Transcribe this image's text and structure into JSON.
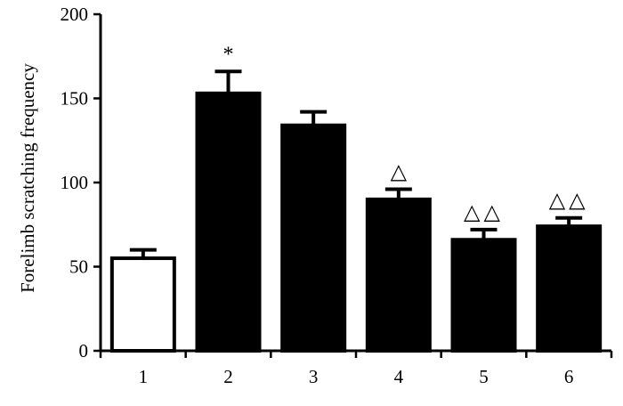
{
  "chart_data": {
    "type": "bar",
    "categories": [
      "1",
      "2",
      "3",
      "4",
      "5",
      "6"
    ],
    "values": [
      55,
      153,
      134,
      90,
      66,
      74
    ],
    "errors": [
      5,
      13,
      8,
      6,
      6,
      5
    ],
    "annotations": [
      "",
      "*",
      "",
      "△",
      "△△",
      "△△"
    ],
    "fills": [
      "#ffffff",
      "#000000",
      "#000000",
      "#000000",
      "#000000",
      "#000000"
    ],
    "ylabel": "Forelimb scratching frequency",
    "xlabel": "",
    "ylim": [
      0,
      200
    ],
    "yticks": [
      "0",
      "50",
      "100",
      "150",
      "200"
    ],
    "grid": false
  }
}
